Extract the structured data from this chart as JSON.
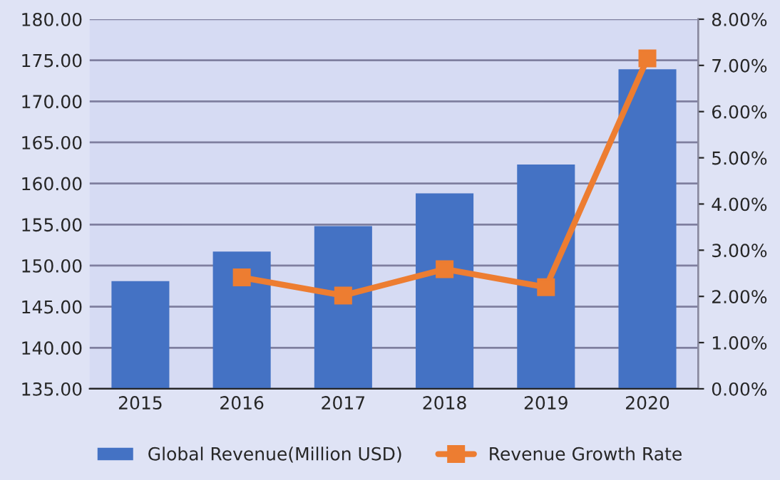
{
  "chart_data": {
    "type": "bar",
    "categories": [
      "2015",
      "2016",
      "2017",
      "2018",
      "2019",
      "2020"
    ],
    "series": [
      {
        "name": "Global Revenue(Million USD)",
        "color": "#4472c4",
        "values": [
          148.1,
          151.7,
          154.8,
          158.8,
          162.3,
          173.9
        ]
      },
      {
        "name": "Revenue Growth Rate",
        "type": "line",
        "axis": "y2",
        "color": "#ed7d31",
        "values": [
          null,
          2.41,
          2.02,
          2.59,
          2.2,
          7.15
        ]
      }
    ],
    "ylim": [
      135,
      180
    ],
    "yticks": [
      {
        "value": 135,
        "label": "135.00"
      },
      {
        "value": 140,
        "label": "140.00"
      },
      {
        "value": 145,
        "label": "145.00"
      },
      {
        "value": 150,
        "label": "150.00"
      },
      {
        "value": 155,
        "label": "155.00"
      },
      {
        "value": 160,
        "label": "160.00"
      },
      {
        "value": 165,
        "label": "165.00"
      },
      {
        "value": 170,
        "label": "170.00"
      },
      {
        "value": 175,
        "label": "175.00"
      },
      {
        "value": 180,
        "label": "180.00"
      }
    ],
    "y2lim": [
      0,
      8
    ],
    "y2ticks": [
      {
        "value": 0,
        "label": "0.00%"
      },
      {
        "value": 1,
        "label": "1.00%"
      },
      {
        "value": 2,
        "label": "2.00%"
      },
      {
        "value": 3,
        "label": "3.00%"
      },
      {
        "value": 4,
        "label": "4.00%"
      },
      {
        "value": 5,
        "label": "5.00%"
      },
      {
        "value": 6,
        "label": "6.00%"
      },
      {
        "value": 7,
        "label": "7.00%"
      },
      {
        "value": 8,
        "label": "8.00%"
      }
    ],
    "grid": "y",
    "legend": "bottom",
    "marker": "square",
    "line_style": "solid"
  }
}
